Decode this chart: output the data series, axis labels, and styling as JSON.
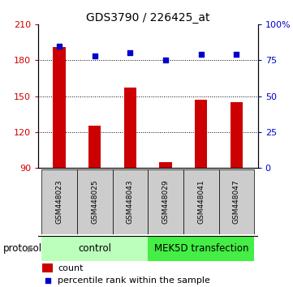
{
  "title": "GDS3790 / 226425_at",
  "samples": [
    "GSM448023",
    "GSM448025",
    "GSM448043",
    "GSM448029",
    "GSM448041",
    "GSM448047"
  ],
  "bar_values": [
    191,
    125,
    157,
    95,
    147,
    145
  ],
  "percentile_values": [
    85,
    78,
    80,
    75,
    79,
    79
  ],
  "ylim_left": [
    90,
    210
  ],
  "ylim_right": [
    0,
    100
  ],
  "yticks_left": [
    90,
    120,
    150,
    180,
    210
  ],
  "yticks_right": [
    0,
    25,
    50,
    75,
    100
  ],
  "ytick_labels_right": [
    "0",
    "25",
    "50",
    "75",
    "100%"
  ],
  "bar_color": "#cc0000",
  "percentile_color": "#0000cc",
  "control_label": "control",
  "treatment_label": "MEK5D transfection",
  "protocol_label": "protocol",
  "control_color": "#bbffbb",
  "treatment_color": "#44ee44",
  "legend_bar_label": "count",
  "legend_pct_label": "percentile rank within the sample",
  "bg_color": "#ffffff",
  "label_bg": "#cccccc"
}
